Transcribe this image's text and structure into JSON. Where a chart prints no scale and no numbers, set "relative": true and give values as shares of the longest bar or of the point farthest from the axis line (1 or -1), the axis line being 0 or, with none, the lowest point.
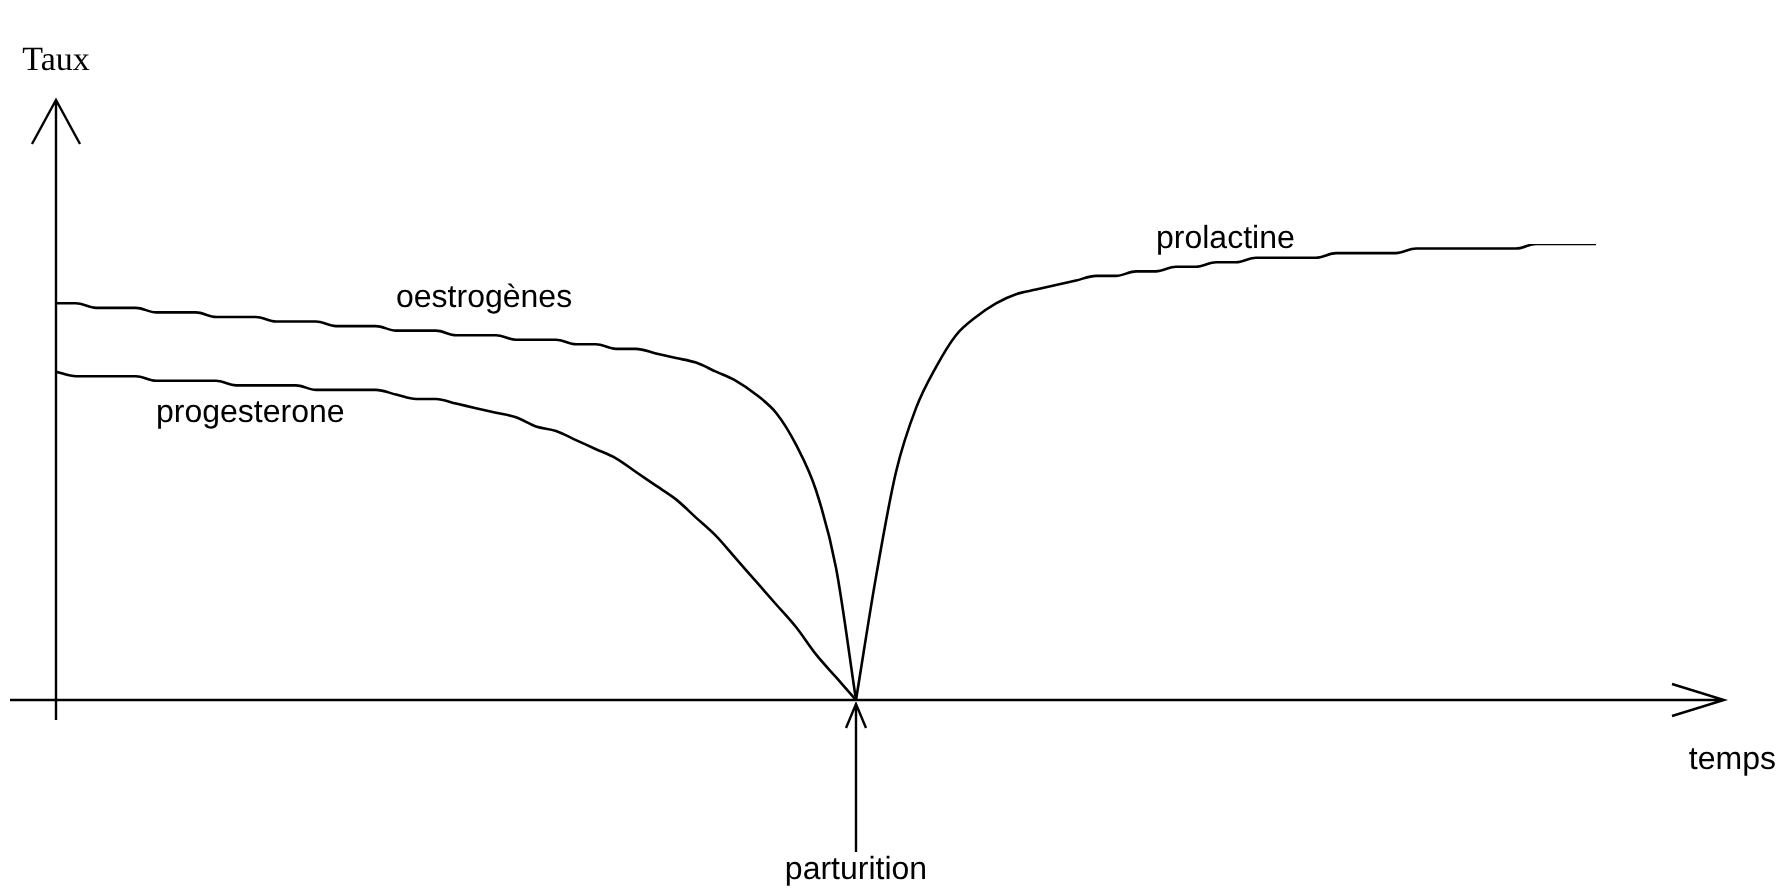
{
  "chart_data": {
    "type": "line",
    "relative": true,
    "ylabel": "Taux",
    "xlabel": "temps",
    "categories": [
      null,
      null,
      null,
      null,
      null,
      null,
      null,
      null,
      null,
      null,
      null,
      null,
      null,
      null,
      null,
      null,
      null,
      null,
      null,
      null,
      null,
      null,
      null,
      null,
      null,
      null,
      null,
      null,
      null,
      null,
      null,
      null,
      null,
      null,
      null,
      null,
      null,
      null,
      null,
      null,
      null,
      null,
      null,
      null,
      null,
      null,
      null,
      null,
      null,
      null,
      null,
      null,
      null,
      null,
      null,
      null,
      null,
      null,
      null,
      null,
      null,
      null,
      null,
      null,
      null,
      null,
      null,
      null,
      null,
      null,
      null,
      null,
      null,
      null,
      null,
      null,
      null,
      null
    ],
    "series": [
      {
        "name": "oestrogènes",
        "color": "#000000",
        "values": [
          0.87,
          0.87,
          0.86,
          0.86,
          0.86,
          0.85,
          0.85,
          0.85,
          0.84,
          0.84,
          0.84,
          0.83,
          0.83,
          0.83,
          0.82,
          0.82,
          0.82,
          0.81,
          0.81,
          0.81,
          0.8,
          0.8,
          0.8,
          0.79,
          0.79,
          0.79,
          0.78,
          0.78,
          0.77,
          0.77,
          0.76,
          0.75,
          0.74,
          0.72,
          0.7,
          0.67,
          0.63,
          0.56,
          0.46,
          0.29,
          0,
          null,
          null,
          null,
          null,
          null,
          null,
          null,
          null,
          null,
          null,
          null,
          null,
          null,
          null,
          null,
          null,
          null,
          null,
          null,
          null,
          null,
          null,
          null,
          null,
          null,
          null,
          null,
          null,
          null,
          null,
          null,
          null,
          null,
          null,
          null,
          null,
          null
        ]
      },
      {
        "name": "progesterone",
        "color": "#000000",
        "values": [
          0.72,
          0.71,
          0.71,
          0.71,
          0.71,
          0.7,
          0.7,
          0.7,
          0.7,
          0.69,
          0.69,
          0.69,
          0.69,
          0.68,
          0.68,
          0.68,
          0.68,
          0.67,
          0.66,
          0.66,
          0.65,
          0.64,
          0.63,
          0.62,
          0.6,
          0.59,
          0.57,
          0.55,
          0.53,
          0.5,
          0.47,
          0.44,
          0.4,
          0.36,
          0.31,
          0.26,
          0.21,
          0.16,
          0.1,
          0.05,
          0,
          null,
          null,
          null,
          null,
          null,
          null,
          null,
          null,
          null,
          null,
          null,
          null,
          null,
          null,
          null,
          null,
          null,
          null,
          null,
          null,
          null,
          null,
          null,
          null,
          null,
          null,
          null,
          null,
          null,
          null,
          null,
          null,
          null,
          null,
          null,
          null,
          null
        ]
      },
      {
        "name": "prolactine",
        "color": "#000000",
        "values": [
          null,
          null,
          null,
          null,
          null,
          null,
          null,
          null,
          null,
          null,
          null,
          null,
          null,
          null,
          null,
          null,
          null,
          null,
          null,
          null,
          null,
          null,
          null,
          null,
          null,
          null,
          null,
          null,
          null,
          null,
          null,
          null,
          null,
          null,
          null,
          null,
          null,
          null,
          null,
          null,
          0,
          0.27,
          0.5,
          0.64,
          0.73,
          0.8,
          0.84,
          0.87,
          0.89,
          0.9,
          0.91,
          0.92,
          0.93,
          0.93,
          0.94,
          0.94,
          0.95,
          0.95,
          0.96,
          0.96,
          0.97,
          0.97,
          0.97,
          0.97,
          0.98,
          0.98,
          0.98,
          0.98,
          0.99,
          0.99,
          0.99,
          0.99,
          0.99,
          0.99,
          1,
          1,
          1,
          1
        ]
      }
    ],
    "annotations": [
      "parturition"
    ],
    "grid": false,
    "legend": false,
    "marker": "none",
    "line_style": "solid"
  }
}
